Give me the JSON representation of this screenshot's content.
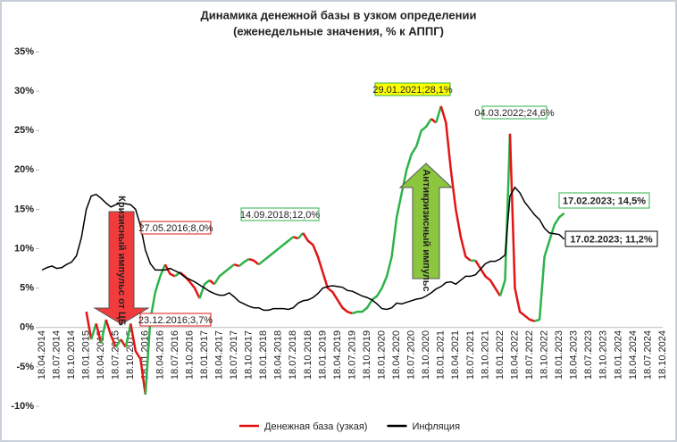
{
  "chart_data": {
    "type": "line",
    "title": "Динамика денежной базы в узком определении",
    "subtitle": "(еженедельные значения, % к АППГ)",
    "categories": [
      "18.04.2014",
      null,
      null,
      "18.07.2014",
      null,
      null,
      "18.10.2014",
      null,
      null,
      "18.01.2015",
      null,
      null,
      "18.04.2015",
      null,
      null,
      "18.07.2015",
      null,
      null,
      "18.10.2015",
      null,
      null,
      "18.01.2016",
      null,
      null,
      "18.04.2016",
      null,
      null,
      "18.07.2016",
      null,
      null,
      "18.10.2016",
      null,
      null,
      "18.01.2017",
      null,
      null,
      "18.04.2017",
      null,
      null,
      "18.07.2017",
      null,
      null,
      "18.10.2017",
      null,
      null,
      "18.01.2018",
      null,
      null,
      "18.04.2018",
      null,
      null,
      "18.07.2018",
      null,
      null,
      "18.10.2018",
      null,
      null,
      "18.01.2019",
      null,
      null,
      "18.04.2019",
      null,
      null,
      "18.07.2019",
      null,
      null,
      "18.10.2019",
      null,
      null,
      "18.01.2020",
      null,
      null,
      "18.04.2020",
      null,
      null,
      "18.07.2020",
      null,
      null,
      "18.10.2020",
      null,
      null,
      "18.01.2021",
      null,
      null,
      "18.04.2021",
      null,
      null,
      "18.07.2021",
      null,
      null,
      "18.10.2021",
      null,
      null,
      "18.01.2022",
      null,
      null,
      "18.04.2022",
      null,
      null,
      "18.07.2022",
      null,
      null,
      "18.10.2022",
      null,
      null,
      "18.01.2023",
      null,
      null,
      "18.04.2023",
      null,
      null,
      "18.07.2023",
      null,
      null,
      "18.10.2023",
      null,
      null,
      "18.01.2024",
      null,
      null,
      "18.04.2024",
      null,
      null,
      "18.07.2024",
      null,
      null,
      "18.10.2024"
    ],
    "series": [
      {
        "name": "Денежная база (узкая)",
        "color": "#e31414",
        "rise_color": "#2db34a",
        "values": [
          null,
          null,
          null,
          null,
          null,
          null,
          null,
          null,
          null,
          2.0,
          -1.5,
          0.5,
          -2.0,
          1.0,
          -1.0,
          -2.5,
          -1.5,
          -2.5,
          0.5,
          -3.0,
          -4.0,
          -8.5,
          1.0,
          4.5,
          6.5,
          8.0,
          6.8,
          6.5,
          7.0,
          6.5,
          5.8,
          5.0,
          3.7,
          5.5,
          6.0,
          5.5,
          6.5,
          7.0,
          7.5,
          8.0,
          7.8,
          8.3,
          8.7,
          8.5,
          8.0,
          8.5,
          9.0,
          9.5,
          10.0,
          10.5,
          11.0,
          11.5,
          11.3,
          12.0,
          11.0,
          10.5,
          9.0,
          7.0,
          5.0,
          4.5,
          3.5,
          2.5,
          2.0,
          1.8,
          2.0,
          2.0,
          2.5,
          3.5,
          4.0,
          5.0,
          6.5,
          9.0,
          14.0,
          17.0,
          20.0,
          22.0,
          23.0,
          25.0,
          25.5,
          26.5,
          26.0,
          28.1,
          26.0,
          20.0,
          15.0,
          11.5,
          9.0,
          8.5,
          8.5,
          7.5,
          6.5,
          6.0,
          5.0,
          4.0,
          6.0,
          24.6,
          5.0,
          2.0,
          1.5,
          1.0,
          0.8,
          1.0,
          9.0,
          11.0,
          13.0,
          14.0,
          14.5,
          null,
          null,
          null,
          null,
          null,
          null,
          null,
          null,
          null,
          null,
          null,
          null,
          null,
          null,
          null,
          null,
          null,
          null,
          null,
          null
        ]
      },
      {
        "name": "Инфляция",
        "color": "#000000",
        "values": [
          7.3,
          7.6,
          7.8,
          7.5,
          7.6,
          8.0,
          8.3,
          9.1,
          11.4,
          15.0,
          16.7,
          16.9,
          16.4,
          15.8,
          15.3,
          15.6,
          15.8,
          15.7,
          15.6,
          15.0,
          12.9,
          9.8,
          8.1,
          7.3,
          7.3,
          7.3,
          7.5,
          7.2,
          6.9,
          6.4,
          6.1,
          5.8,
          5.4,
          5.0,
          4.6,
          4.3,
          4.1,
          4.1,
          4.4,
          3.9,
          3.3,
          3.0,
          2.7,
          2.5,
          2.5,
          2.2,
          2.2,
          2.4,
          2.4,
          2.4,
          2.3,
          2.5,
          3.1,
          3.4,
          3.5,
          3.8,
          4.3,
          5.0,
          5.2,
          5.3,
          5.2,
          5.1,
          4.7,
          4.6,
          4.3,
          4.0,
          3.8,
          3.5,
          3.0,
          2.4,
          2.3,
          2.5,
          3.1,
          3.0,
          3.2,
          3.4,
          3.6,
          3.7,
          4.0,
          4.4,
          4.9,
          5.2,
          5.7,
          5.8,
          5.5,
          6.0,
          6.5,
          6.5,
          6.7,
          7.4,
          8.1,
          8.4,
          8.4,
          8.7,
          9.2,
          16.7,
          17.8,
          17.1,
          15.9,
          15.1,
          14.3,
          13.7,
          12.6,
          12.0,
          11.9,
          11.8,
          11.2,
          null,
          null,
          null,
          null,
          null,
          null,
          null,
          null,
          null,
          null,
          null,
          null,
          null,
          null,
          null,
          null,
          null,
          null,
          null,
          null
        ]
      }
    ],
    "ylim": [
      -10,
      35
    ],
    "yticks": [
      {
        "value": -10,
        "label": "-10%"
      },
      {
        "value": -5,
        "label": "-5%"
      },
      {
        "value": 0,
        "label": "0%"
      },
      {
        "value": 5,
        "label": "5%"
      },
      {
        "value": 10,
        "label": "10%"
      },
      {
        "value": 15,
        "label": "15%"
      },
      {
        "value": 20,
        "label": "20%"
      },
      {
        "value": 25,
        "label": "25%"
      },
      {
        "value": 30,
        "label": "30%"
      },
      {
        "value": 35,
        "label": "35%"
      }
    ],
    "grid": false,
    "legend": "bottom",
    "annotations": [
      {
        "text": "27.05.2016;8,0%",
        "color": "#e31414",
        "fill": "#ffffff"
      },
      {
        "text": "23.12.2016;3,7%",
        "color": "#e31414",
        "fill": "#ffffff"
      },
      {
        "text": "14.09.2018;12,0%",
        "color": "#2db34a",
        "fill": "#ffffff"
      },
      {
        "text": "29.01.2021;28,1%",
        "color": "#2db34a",
        "fill": "#ffff00"
      },
      {
        "text": "04.03.2022;24,6%",
        "color": "#2db34a",
        "fill": "#ffffff"
      },
      {
        "text": "17.02.2023; 14,5%",
        "color": "#2db34a",
        "fill": "#ffffff"
      },
      {
        "text": "17.02.2023; 11,2%",
        "color": "#000000",
        "fill": "#ffffff"
      }
    ],
    "arrows": [
      {
        "text": "Кризисный импульс от ЦБ",
        "color": "#f23c3c"
      },
      {
        "text": "Антикризисный импульс",
        "color": "#8cc63f"
      }
    ]
  }
}
